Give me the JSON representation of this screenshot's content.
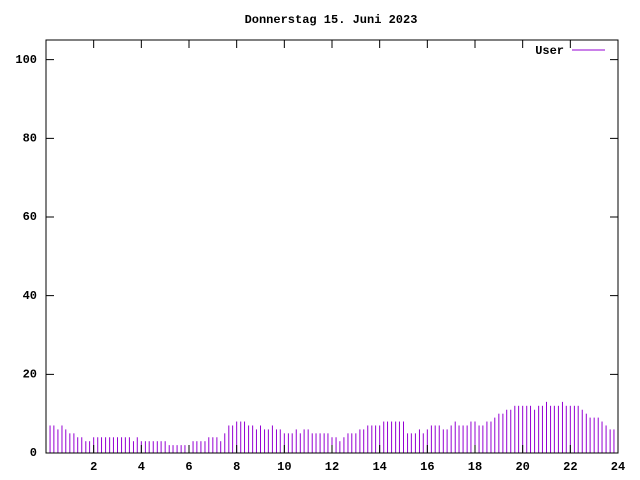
{
  "chart_data": {
    "type": "impulse",
    "title": "Donnerstag 15. Juni 2023",
    "series": [
      {
        "name": "User",
        "color": "#9400d3",
        "values": [
          8,
          7,
          7,
          6,
          7,
          6,
          5,
          5,
          4,
          4,
          3,
          3,
          4,
          4,
          4,
          4,
          4,
          4,
          4,
          4,
          4,
          4,
          3,
          4,
          3,
          3,
          3,
          3,
          3,
          3,
          3,
          2,
          2,
          2,
          2,
          2,
          2,
          3,
          3,
          3,
          3,
          4,
          4,
          4,
          3,
          5,
          7,
          7,
          8,
          8,
          8,
          7,
          7,
          6,
          7,
          6,
          6,
          7,
          6,
          6,
          5,
          5,
          5,
          6,
          5,
          6,
          6,
          5,
          5,
          5,
          5,
          5,
          4,
          4,
          3,
          4,
          5,
          5,
          5,
          6,
          6,
          7,
          7,
          7,
          7,
          8,
          8,
          8,
          8,
          8,
          8,
          5,
          5,
          5,
          6,
          5,
          6,
          7,
          7,
          7,
          6,
          6,
          7,
          8,
          7,
          7,
          7,
          8,
          8,
          7,
          7,
          8,
          8,
          9,
          10,
          10,
          11,
          11,
          12,
          12,
          12,
          12,
          12,
          11,
          12,
          12,
          13,
          12,
          12,
          12,
          13,
          12,
          12,
          12,
          12,
          11,
          10,
          9,
          9,
          9,
          8,
          7,
          6,
          6
        ]
      }
    ],
    "x": [
      0,
      0.17,
      0.33,
      0.5,
      0.67,
      0.83,
      1,
      1.17,
      1.33,
      1.5,
      1.67,
      1.83,
      2,
      2.17,
      2.33,
      2.5,
      2.67,
      2.83,
      3,
      3.17,
      3.33,
      3.5,
      3.67,
      3.83,
      4,
      4.17,
      4.33,
      4.5,
      4.67,
      4.83,
      5,
      5.17,
      5.33,
      5.5,
      5.67,
      5.83,
      6,
      6.17,
      6.33,
      6.5,
      6.67,
      6.83,
      7,
      7.17,
      7.33,
      7.5,
      7.67,
      7.83,
      8,
      8.17,
      8.33,
      8.5,
      8.67,
      8.83,
      9,
      9.17,
      9.33,
      9.5,
      9.67,
      9.83,
      10,
      10.17,
      10.33,
      10.5,
      10.67,
      10.83,
      11,
      11.17,
      11.33,
      11.5,
      11.67,
      11.83,
      12,
      12.17,
      12.33,
      12.5,
      12.67,
      12.83,
      13,
      13.17,
      13.33,
      13.5,
      13.67,
      13.83,
      14,
      14.17,
      14.33,
      14.5,
      14.67,
      14.83,
      15,
      15.17,
      15.33,
      15.5,
      15.67,
      15.83,
      16,
      16.17,
      16.33,
      16.5,
      16.67,
      16.83,
      17,
      17.17,
      17.33,
      17.5,
      17.67,
      17.83,
      18,
      18.17,
      18.33,
      18.5,
      18.67,
      18.83,
      19,
      19.17,
      19.33,
      19.5,
      19.67,
      19.83,
      20,
      20.17,
      20.33,
      20.5,
      20.67,
      20.83,
      21,
      21.17,
      21.33,
      21.5,
      21.67,
      21.83,
      22,
      22.17,
      22.33,
      22.5,
      22.67,
      22.83,
      23,
      23.17,
      23.33,
      23.5,
      23.67,
      23.83
    ],
    "xlim": [
      0,
      24
    ],
    "xticks": [
      2,
      4,
      6,
      8,
      10,
      12,
      14,
      16,
      18,
      20,
      22,
      24
    ],
    "ylim": [
      0,
      105
    ],
    "yticks": [
      0,
      20,
      40,
      60,
      80,
      100
    ],
    "legend": "top-right"
  }
}
